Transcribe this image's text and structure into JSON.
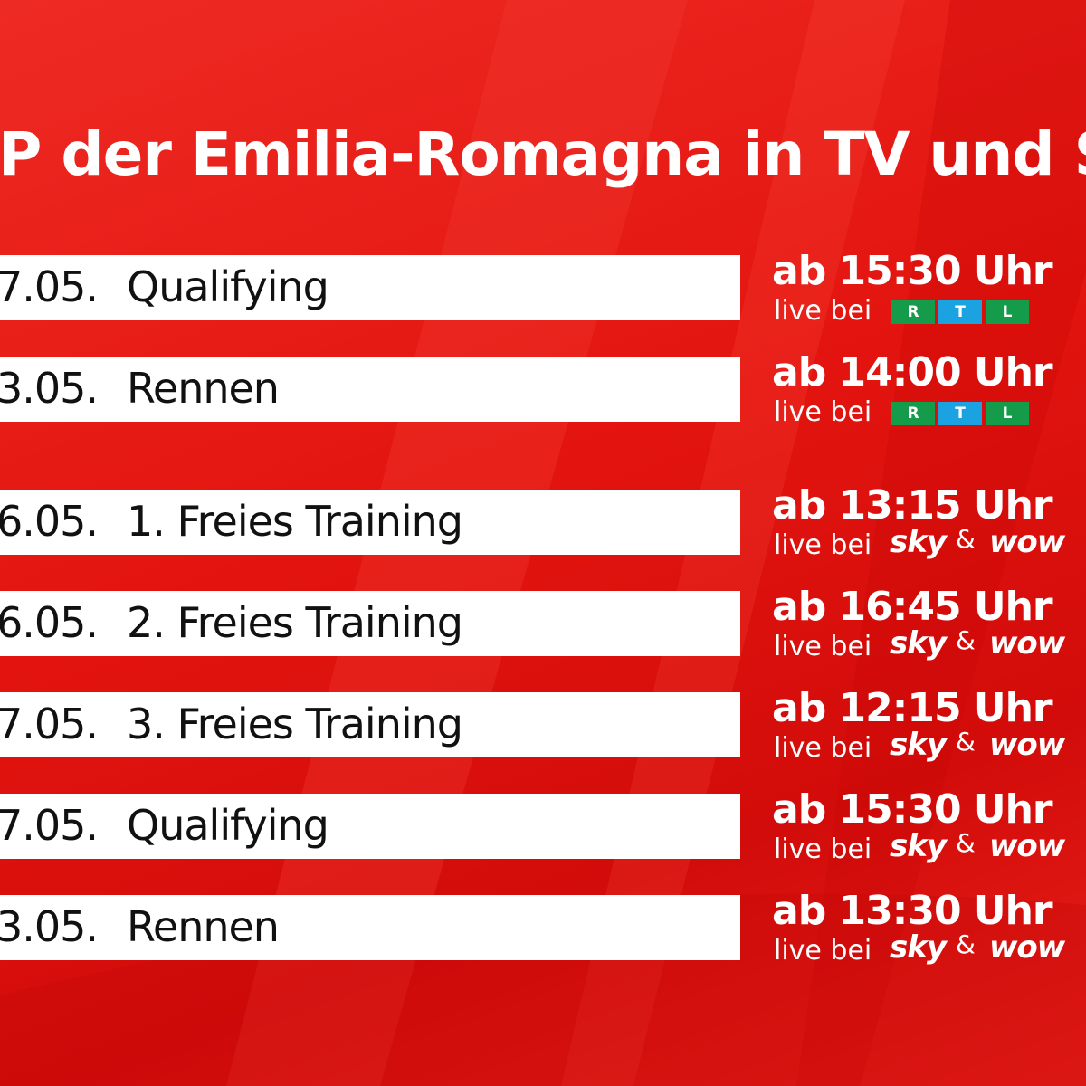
{
  "header": {
    "title": "P der Emilia-Romagna in TV und Str"
  },
  "rows": [
    {
      "date": "7.05.",
      "event": "Qualifying",
      "time": "ab 15:30 Uhr",
      "live": "live bei",
      "channel": [
        "R",
        "T",
        "L"
      ]
    },
    {
      "date": "3.05.",
      "event": "Rennen",
      "time": "ab 14:00 Uhr",
      "live": "live bei",
      "channel": [
        "R",
        "T",
        "L"
      ]
    },
    {
      "date": "6.05.",
      "event": "1. Freies Training",
      "time": "ab 13:15 Uhr",
      "live": "live bei",
      "channel": [
        "sky",
        "&",
        "wow"
      ]
    },
    {
      "date": "6.05.",
      "event": "2. Freies Training",
      "time": "ab 16:45 Uhr",
      "live": "live bei",
      "channel": [
        "sky",
        "&",
        "wow"
      ]
    },
    {
      "date": "7.05.",
      "event": "3. Freies Training",
      "time": "ab 12:15 Uhr",
      "live": "live bei",
      "channel": [
        "sky",
        "&",
        "wow"
      ]
    },
    {
      "date": "7.05.",
      "event": "Qualifying",
      "time": "ab 15:30 Uhr",
      "live": "live bei",
      "channel": [
        "sky",
        "&",
        "wow"
      ]
    },
    {
      "date": "3.05.",
      "event": "Rennen",
      "time": "ab 13:30 Uhr",
      "live": "live bei",
      "channel": [
        "sky",
        "&",
        "wow"
      ]
    }
  ]
}
